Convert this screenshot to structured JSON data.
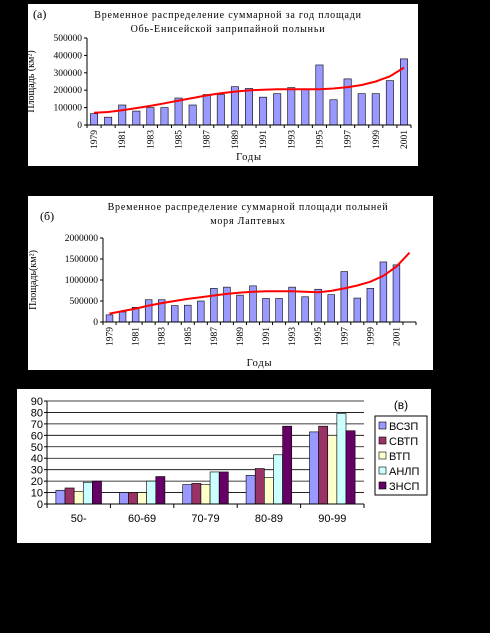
{
  "chart_data": [
    {
      "type": "bar",
      "panel_label": "(а)",
      "title": [
        "Временное распределение суммарной за год площади",
        "Обь-Енисейской заприпайной полыньи"
      ],
      "xlabel": "Годы",
      "ylabel": "Площадь (км²)",
      "ylim": [
        0,
        500000
      ],
      "yticks": [
        "0",
        "100000",
        "200000",
        "300000",
        "400000",
        "500000"
      ],
      "xtick_labels": [
        "1979",
        "1981",
        "1983",
        "1985",
        "1987",
        "1989",
        "1991",
        "1993",
        "1995",
        "1997",
        "1999",
        "2001"
      ],
      "categories": [
        "1979",
        "1980",
        "1981",
        "1982",
        "1983",
        "1984",
        "1985",
        "1986",
        "1987",
        "1988",
        "1989",
        "1990",
        "1991",
        "1992",
        "1993",
        "1994",
        "1995",
        "1996",
        "1997",
        "1998",
        "1999",
        "2000",
        "2001"
      ],
      "values": [
        65000,
        45000,
        115000,
        80000,
        100000,
        100000,
        155000,
        115000,
        175000,
        175000,
        220000,
        210000,
        160000,
        180000,
        215000,
        205000,
        345000,
        145000,
        265000,
        180000,
        180000,
        255000,
        380000
      ],
      "trend": [
        70000,
        75000,
        85000,
        97000,
        110000,
        125000,
        140000,
        155000,
        170000,
        182000,
        192000,
        199000,
        203000,
        205000,
        205000,
        205000,
        206000,
        210000,
        218000,
        230000,
        250000,
        280000,
        330000
      ],
      "bar_color": "#9999ff",
      "trend_color": "#ff0000",
      "grid": false
    },
    {
      "type": "bar",
      "panel_label": "(б)",
      "title": [
        "Временное распределение суммарной площади полыней",
        "моря Лаптевых"
      ],
      "xlabel": "Годы",
      "ylabel": "Площадь(км²)",
      "ylim": [
        0,
        2000000
      ],
      "yticks": [
        "0",
        "500000",
        "1000000",
        "1500000",
        "2000000"
      ],
      "xtick_labels": [
        "1979",
        "1981",
        "1983",
        "1985",
        "1987",
        "1989",
        "1991",
        "1993",
        "1995",
        "1997",
        "1999",
        "2001"
      ],
      "categories": [
        "1979",
        "1980",
        "1981",
        "1982",
        "1983",
        "1984",
        "1985",
        "1986",
        "1987",
        "1988",
        "1989",
        "1990",
        "1991",
        "1992",
        "1993",
        "1994",
        "1995",
        "1996",
        "1997",
        "1998",
        "1999",
        "2000",
        "2001",
        "2002"
      ],
      "values": [
        170000,
        240000,
        350000,
        530000,
        530000,
        390000,
        400000,
        500000,
        800000,
        830000,
        640000,
        860000,
        560000,
        560000,
        830000,
        600000,
        780000,
        650000,
        1200000,
        570000,
        800000,
        1430000,
        1360000,
        0
      ],
      "trend": [
        200000,
        260000,
        320000,
        390000,
        450000,
        500000,
        550000,
        590000,
        630000,
        670000,
        700000,
        720000,
        730000,
        730000,
        730000,
        720000,
        710000,
        740000,
        800000,
        870000,
        960000,
        1100000,
        1320000,
        1650000
      ],
      "bar_color": "#9999ff",
      "trend_color": "#ff0000",
      "grid": false
    },
    {
      "type": "bar",
      "panel_label": "(в)",
      "title": "",
      "ylim": [
        0,
        90
      ],
      "yticks": [
        "0",
        "10",
        "20",
        "30",
        "40",
        "50",
        "60",
        "70",
        "80",
        "90"
      ],
      "categories": [
        "50-",
        "60-69",
        "70-79",
        "80-89",
        "90-99"
      ],
      "series": [
        {
          "name": "ВСЗП",
          "color": "#9999ff",
          "values": [
            12,
            10,
            17,
            25,
            63
          ]
        },
        {
          "name": "СВТП",
          "color": "#993366",
          "values": [
            14,
            10,
            18,
            31,
            68
          ]
        },
        {
          "name": "ВТП",
          "color": "#ffffcc",
          "values": [
            11,
            10,
            17,
            23,
            60
          ]
        },
        {
          "name": "АНЛП",
          "color": "#ccffff",
          "values": [
            19,
            20,
            28,
            43,
            79
          ]
        },
        {
          "name": "ЗНСП",
          "color": "#660066",
          "values": [
            20,
            24,
            28,
            68,
            64
          ]
        }
      ],
      "legend_position": "right",
      "grid": true
    }
  ]
}
